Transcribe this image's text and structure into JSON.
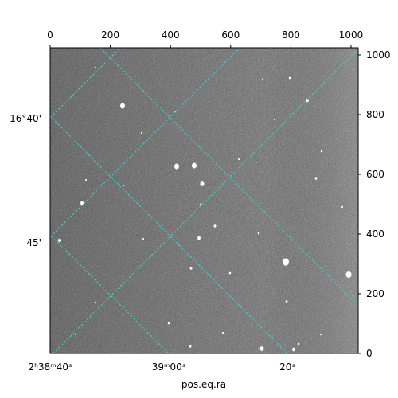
{
  "figure": {
    "xlabel": "pos.eq.ra",
    "top_ticks": [
      "0",
      "200",
      "400",
      "600",
      "800",
      "1000"
    ],
    "right_ticks": [
      "0",
      "200",
      "400",
      "600",
      "800",
      "1000"
    ],
    "ra_ticks": [
      {
        "main": "2ʰ38ᵐ40ˢ"
      },
      {
        "main": "39ᵐ00ˢ"
      },
      {
        "main": "20ˢ"
      }
    ],
    "dec_ticks": [
      "16°40'",
      "45'"
    ],
    "grid_color": "#3fd0d0",
    "image_description_colors": {
      "background": "#6e6e6e",
      "star": "#ffffff"
    }
  }
}
